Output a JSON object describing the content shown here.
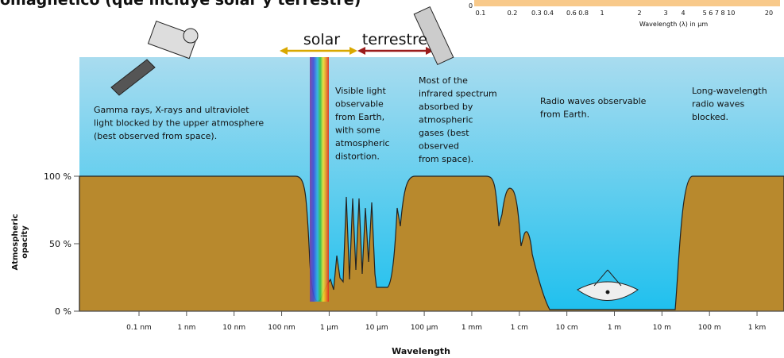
{
  "header": {
    "title": "omagnético (que incluye solar y terrestre)"
  },
  "inset": {
    "zero": "0",
    "ticks": [
      "0.1",
      "0.2",
      "0.3 0.4",
      "0.6 0.8",
      "1",
      "2",
      "3",
      "4",
      "5 6 7 8 10",
      "20"
    ],
    "axis_label": "Wavelength (λ) in μm"
  },
  "bands": {
    "solar": "solar",
    "terrestre": "terrestre"
  },
  "annotations": [
    {
      "lines": [
        "Gamma rays, X-rays and ultraviolet",
        "light blocked by the upper atmosphere",
        "(best observed from space)."
      ]
    },
    {
      "lines": [
        "Visible light",
        "observable",
        "from Earth,",
        "with some",
        "atmospheric",
        "distortion."
      ]
    },
    {
      "lines": [
        "Most of the",
        "infrared spectrum",
        "absorbed by",
        "atmospheric",
        "gases (best",
        "observed",
        "from space)."
      ]
    },
    {
      "lines": [
        "Radio waves observable",
        "from Earth."
      ]
    },
    {
      "lines": [
        "Long-wavelength",
        "radio waves",
        "blocked."
      ]
    }
  ],
  "y_axis": {
    "label_lines": [
      "Atmospheric",
      "opacity"
    ],
    "ticks": [
      "100 %",
      "50 %",
      "0 %"
    ]
  },
  "x_axis": {
    "label": "Wavelength",
    "ticks": [
      "0.1 nm",
      "1 nm",
      "10 nm",
      "100 nm",
      "1 μm",
      "10 μm",
      "100 μm",
      "1 mm",
      "1 cm",
      "10 cm",
      "1 m",
      "10 m",
      "100 m",
      "1 km"
    ]
  }
}
